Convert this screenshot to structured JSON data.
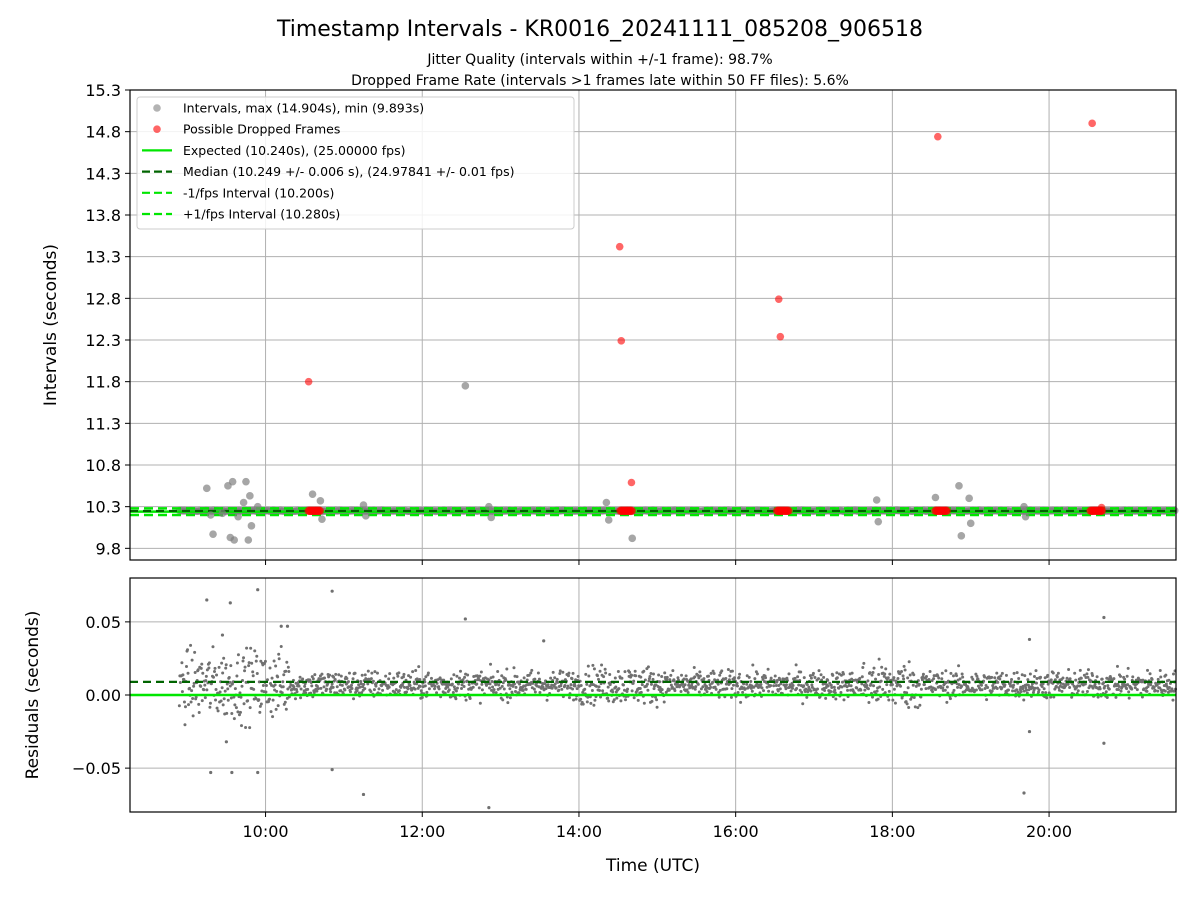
{
  "chart_data": [
    {
      "type": "scatter",
      "title": "Timestamp Intervals - KR0016_20241111_085208_906518",
      "subtitle_lines": [
        "Jitter Quality (intervals within +/-1 frame): 98.7%",
        "Dropped Frame Rate (intervals >1 frames late within 50 FF files): 5.6%"
      ],
      "ylabel": "Intervals (seconds)",
      "xlim": [
        8.27,
        21.62
      ],
      "ylim": [
        9.66,
        15.3
      ],
      "x_unit": "hours UTC",
      "yticks": [
        9.8,
        10.3,
        10.8,
        11.3,
        11.8,
        12.3,
        12.8,
        13.3,
        13.8,
        14.3,
        14.8,
        15.3
      ],
      "ytick_labels": [
        "9.8",
        "10.3",
        "10.8",
        "11.3",
        "11.8",
        "12.3",
        "12.8",
        "13.3",
        "13.8",
        "14.3",
        "14.8",
        "15.3"
      ],
      "grid": true,
      "legend_position": "top-left",
      "legend": [
        {
          "label": "Intervals, max (14.904s), min (9.893s)",
          "marker": "dot",
          "color": "#808080"
        },
        {
          "label": "Possible Dropped Frames",
          "marker": "dot",
          "color": "#ff0000"
        },
        {
          "label": "Expected (10.240s), (25.00000 fps)",
          "marker": "solid",
          "color": "#00e600"
        },
        {
          "label": "Median (10.249 +/- 0.006 s), (24.97841 +/- 0.01 fps)",
          "marker": "dashed",
          "color": "#006400"
        },
        {
          "label": "-1/fps Interval (10.200s)",
          "marker": "dashed",
          "color": "#00e600"
        },
        {
          "label": "+1/fps Interval (10.280s)",
          "marker": "dashed",
          "color": "#00e600"
        }
      ],
      "reference_lines": {
        "expected": 10.24,
        "median": 10.249,
        "minus_one_frame": 10.2,
        "plus_one_frame": 10.28
      },
      "series": [
        {
          "name": "Intervals, max (14.904s), min (9.893s)",
          "color": "#808080",
          "x": [
            9.25,
            9.3,
            9.33,
            9.45,
            9.52,
            9.55,
            9.58,
            9.6,
            9.65,
            9.72,
            9.75,
            9.78,
            9.8,
            9.82,
            9.9,
            10.6,
            10.7,
            10.72,
            11.25,
            11.28,
            12.55,
            12.85,
            12.88,
            14.35,
            14.38,
            14.68,
            17.8,
            17.82,
            18.55,
            18.85,
            18.88,
            18.98,
            19.0,
            19.68,
            19.7
          ],
          "y": [
            10.52,
            10.2,
            9.97,
            10.22,
            10.55,
            9.93,
            10.6,
            9.9,
            10.18,
            10.35,
            10.6,
            9.9,
            10.43,
            10.07,
            10.3,
            10.45,
            10.37,
            10.15,
            10.32,
            10.19,
            11.75,
            10.3,
            10.17,
            10.35,
            10.14,
            9.92,
            10.38,
            10.12,
            10.41,
            10.55,
            9.95,
            10.4,
            10.1,
            10.3,
            10.18
          ]
        },
        {
          "name": "Possible Dropped Frames",
          "color": "#ff0000",
          "x": [
            10.55,
            14.52,
            14.54,
            14.67,
            16.55,
            16.57,
            18.58,
            20.55,
            20.67
          ],
          "y": [
            11.8,
            13.42,
            12.29,
            10.59,
            12.79,
            12.34,
            14.74,
            14.9,
            10.29
          ]
        }
      ],
      "dropped_clusters": [
        {
          "x_start": 10.55,
          "x_end": 10.7,
          "y": 10.25
        },
        {
          "x_start": 14.53,
          "x_end": 14.68,
          "y": 10.25
        },
        {
          "x_start": 16.53,
          "x_end": 16.68,
          "y": 10.25
        },
        {
          "x_start": 18.55,
          "x_end": 18.7,
          "y": 10.25
        },
        {
          "x_start": 20.53,
          "x_end": 20.68,
          "y": 10.25
        }
      ],
      "dense_band": {
        "x_start": 8.9,
        "x_end": 21.62,
        "y_center": 10.25
      }
    },
    {
      "type": "scatter",
      "xlabel": "Time (UTC)",
      "ylabel": "Residuals (seconds)",
      "xlim": [
        8.27,
        21.62
      ],
      "ylim": [
        -0.08,
        0.08
      ],
      "yticks": [
        -0.05,
        0.0,
        0.05
      ],
      "ytick_labels": [
        "−0.05",
        "0.00",
        "0.05"
      ],
      "xticks": [
        10,
        12,
        14,
        16,
        18,
        20
      ],
      "xtick_labels": [
        "10:00",
        "12:00",
        "14:00",
        "16:00",
        "18:00",
        "20:00"
      ],
      "grid": true,
      "reference_lines": {
        "zero": 0.0,
        "median_offset": 0.009
      },
      "series": [
        {
          "name": "",
          "color": "#707070",
          "x": [
            9.25,
            9.45,
            9.55,
            9.9,
            10.2,
            10.28,
            10.85,
            12.55,
            13.55,
            19.75,
            20.7,
            9.3,
            9.5,
            9.57,
            9.9,
            10.85,
            11.25,
            12.85,
            19.68,
            19.75,
            20.7
          ],
          "y": [
            0.065,
            0.041,
            0.063,
            0.072,
            0.047,
            0.047,
            0.071,
            0.052,
            0.037,
            0.038,
            0.053,
            -0.053,
            -0.032,
            -0.053,
            -0.053,
            -0.051,
            -0.068,
            -0.077,
            -0.067,
            -0.025,
            -0.033
          ]
        }
      ],
      "residual_band": {
        "x_start": 8.9,
        "x_end": 21.62,
        "center": 0.007,
        "spread": 0.015
      }
    }
  ]
}
